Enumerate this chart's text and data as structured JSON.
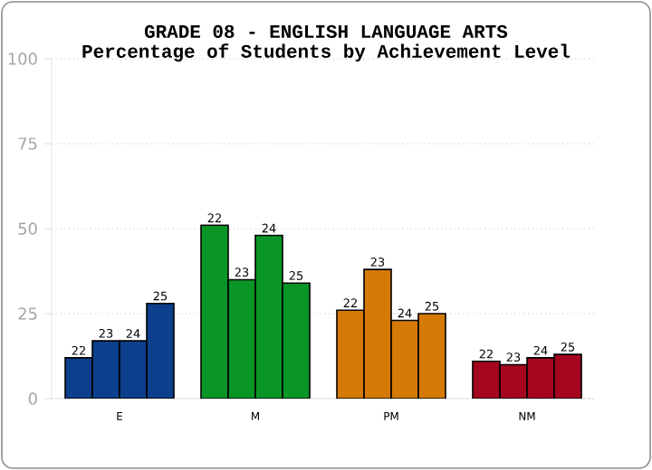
{
  "chart_data": {
    "type": "bar",
    "title": "GRADE 08 - ENGLISH LANGUAGE ARTS",
    "subtitle": "Percentage of Students by Achievement Level",
    "categories": [
      "E",
      "M",
      "PM",
      "NM"
    ],
    "series": [
      {
        "name": "22",
        "colors": [
          "#0c3f8c",
          "#0a9626",
          "#d67a07",
          "#a4061f"
        ],
        "values": [
          12,
          51,
          26,
          11
        ]
      },
      {
        "name": "23",
        "colors": [
          "#0c3f8c",
          "#0a9626",
          "#d67a07",
          "#a4061f"
        ],
        "values": [
          17,
          35,
          38,
          10
        ]
      },
      {
        "name": "24",
        "colors": [
          "#0c3f8c",
          "#0a9626",
          "#d67a07",
          "#a4061f"
        ],
        "values": [
          17,
          48,
          23,
          12
        ]
      },
      {
        "name": "25",
        "colors": [
          "#0c3f8c",
          "#0a9626",
          "#d67a07",
          "#a4061f"
        ],
        "values": [
          28,
          34,
          25,
          13
        ]
      }
    ],
    "ylim": [
      0,
      100
    ],
    "yticks": [
      0,
      25,
      50,
      75,
      100
    ],
    "grid": "y"
  }
}
